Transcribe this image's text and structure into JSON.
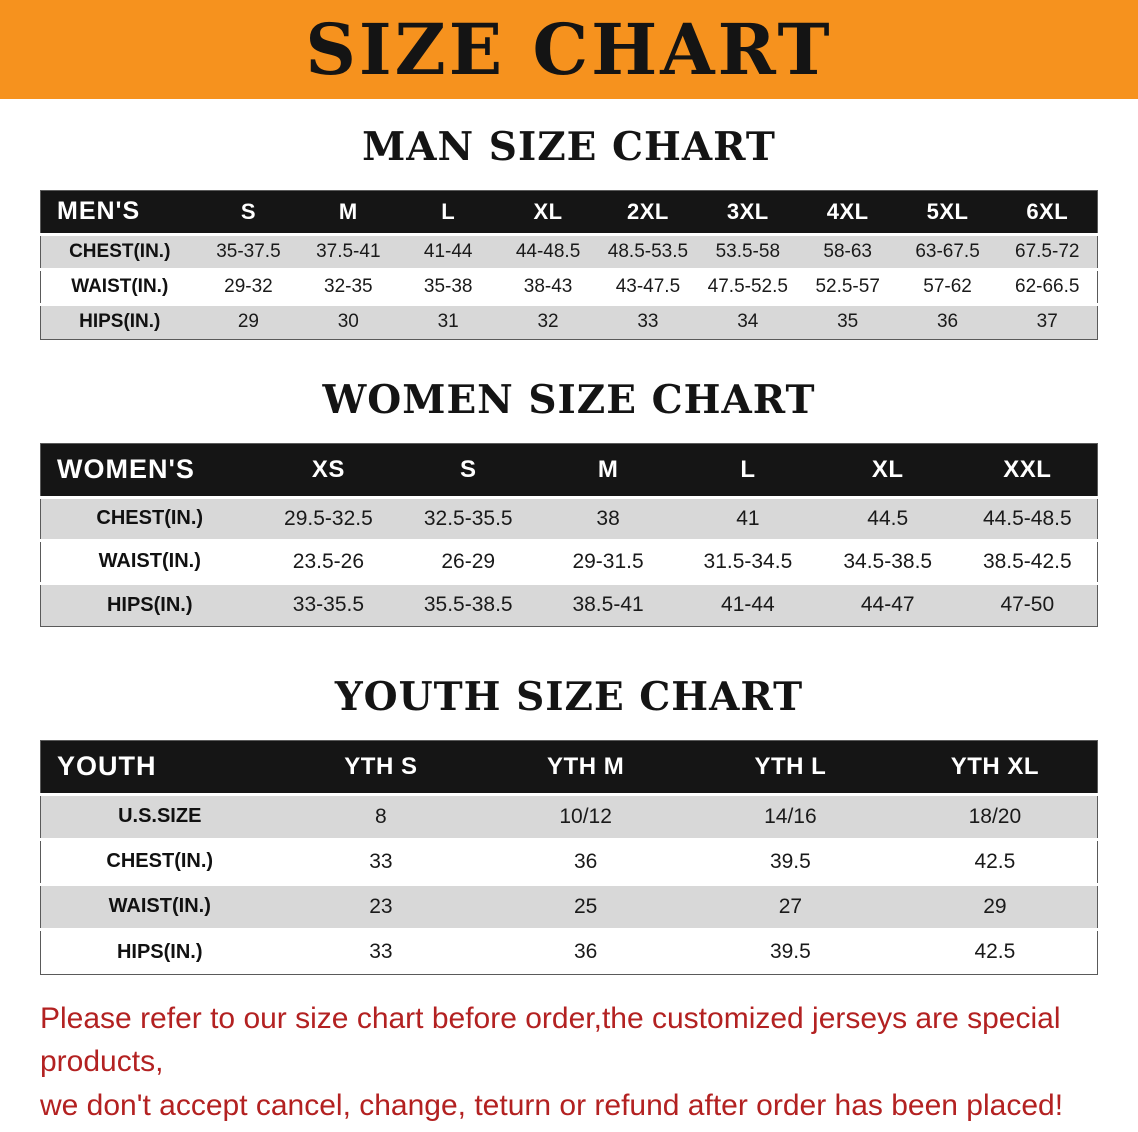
{
  "banner_title": "SIZE CHART",
  "men": {
    "heading": "MAN SIZE CHART",
    "table": {
      "header": [
        "MEN'S",
        "S",
        "M",
        "L",
        "XL",
        "2XL",
        "3XL",
        "4XL",
        "5XL",
        "6XL"
      ],
      "rows": [
        [
          "CHEST(IN.)",
          "35-37.5",
          "37.5-41",
          "41-44",
          "44-48.5",
          "48.5-53.5",
          "53.5-58",
          "58-63",
          "63-67.5",
          "67.5-72"
        ],
        [
          "WAIST(IN.)",
          "29-32",
          "32-35",
          "35-38",
          "38-43",
          "43-47.5",
          "47.5-52.5",
          "52.5-57",
          "57-62",
          "62-66.5"
        ],
        [
          "HIPS(IN.)",
          "29",
          "30",
          "31",
          "32",
          "33",
          "34",
          "35",
          "36",
          "37"
        ]
      ]
    }
  },
  "women": {
    "heading": "WOMEN SIZE CHART",
    "table": {
      "header": [
        "WOMEN'S",
        "XS",
        "S",
        "M",
        "L",
        "XL",
        "XXL"
      ],
      "rows": [
        [
          "CHEST(IN.)",
          "29.5-32.5",
          "32.5-35.5",
          "38",
          "41",
          "44.5",
          "44.5-48.5"
        ],
        [
          "WAIST(IN.)",
          "23.5-26",
          "26-29",
          "29-31.5",
          "31.5-34.5",
          "34.5-38.5",
          "38.5-42.5"
        ],
        [
          "HIPS(IN.)",
          "33-35.5",
          "35.5-38.5",
          "38.5-41",
          "41-44",
          "44-47",
          "47-50"
        ]
      ]
    }
  },
  "youth": {
    "heading": "YOUTH SIZE CHART",
    "table": {
      "header": [
        "YOUTH",
        "YTH S",
        "YTH M",
        "YTH L",
        "YTH XL"
      ],
      "rows": [
        [
          "U.S.SIZE",
          "8",
          "10/12",
          "14/16",
          "18/20"
        ],
        [
          "CHEST(IN.)",
          "33",
          "36",
          "39.5",
          "42.5"
        ],
        [
          "WAIST(IN.)",
          "23",
          "25",
          "27",
          "29"
        ],
        [
          "HIPS(IN.)",
          "33",
          "36",
          "39.5",
          "42.5"
        ]
      ]
    }
  },
  "disclaimer": {
    "lines": [
      "Please refer to our size chart before order,the customized jerseys are special products,",
      "we don't accept cancel, change, teturn or refund after order has been placed!"
    ]
  },
  "colors": {
    "banner_orange": "#f6921e",
    "header_black": "#151515",
    "row_gray": "#d8d8d8",
    "disclaimer_red": "#b32121"
  }
}
